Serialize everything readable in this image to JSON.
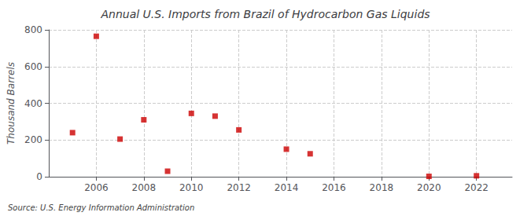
{
  "chart_data": {
    "type": "scatter",
    "title": "Annual U.S. Imports from Brazil of Hydrocarbon Gas Liquids",
    "ylabel": "Thousand Barrels",
    "annotation": "Source: U.S. Energy Information Administration",
    "x": [
      2005,
      2006,
      2007,
      2008,
      2009,
      2010,
      2011,
      2012,
      2014,
      2015,
      2020,
      2022
    ],
    "values": [
      240,
      765,
      205,
      310,
      30,
      345,
      330,
      255,
      150,
      125,
      2,
      5
    ],
    "color": "#CC0000",
    "marker": "square",
    "xlim": [
      2004,
      2023.5
    ],
    "ylim": [
      0,
      800
    ],
    "xticks": [
      2006,
      2008,
      2010,
      2012,
      2014,
      2016,
      2018,
      2020,
      2022
    ],
    "yticks": [
      0,
      200,
      400,
      600,
      800
    ],
    "grid": true
  }
}
